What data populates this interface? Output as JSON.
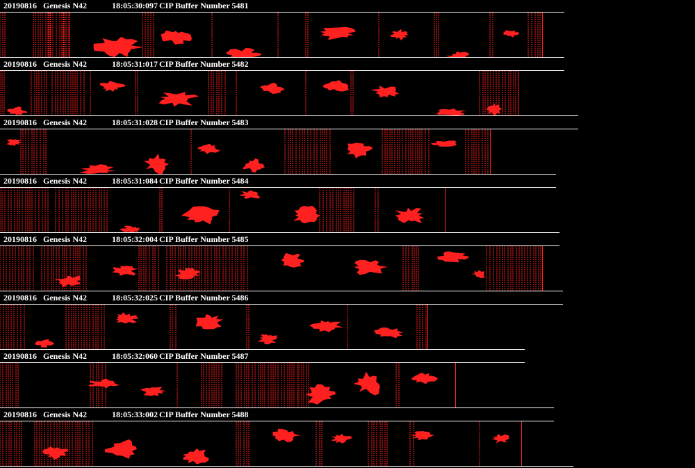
{
  "colors": {
    "particle": "#ff2020",
    "background": "#000000",
    "text": "#ffffff"
  },
  "strips": [
    {
      "date": "20190816",
      "probe": "Genesis N42",
      "time": "18:05:30:097",
      "buffer_label": "CIP Buffer Number 5481"
    },
    {
      "date": "20190816",
      "probe": "Genesis N42",
      "time": "18:05:31:017",
      "buffer_label": "CIP Buffer Number 5482"
    },
    {
      "date": "20190816",
      "probe": "Genesis N42",
      "time": "18:05:31:028",
      "buffer_label": "CIP Buffer Number 5483"
    },
    {
      "date": "20190816",
      "probe": "Genesis N42",
      "time": "18:05:31:084",
      "buffer_label": "CIP Buffer Number 5484"
    },
    {
      "date": "20190816",
      "probe": "Genesis N42",
      "time": "18:05:32:004",
      "buffer_label": "CIP Buffer Number 5485"
    },
    {
      "date": "20190816",
      "probe": "Genesis N42",
      "time": "18:05:32:025",
      "buffer_label": "CIP Buffer Number 5486"
    },
    {
      "date": "20190816",
      "probe": "Genesis N42",
      "time": "18:05:32:060",
      "buffer_label": "CIP Buffer Number 5487"
    },
    {
      "date": "20190816",
      "probe": "Genesis N42",
      "time": "18:05:33:002",
      "buffer_label": "CIP Buffer Number 5488"
    }
  ]
}
